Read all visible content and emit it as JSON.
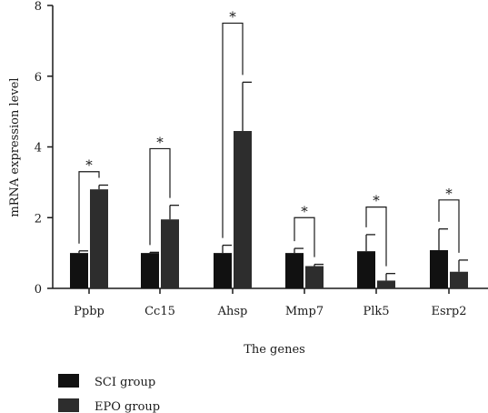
{
  "chart_data": {
    "type": "bar",
    "title": "",
    "xlabel": "The genes",
    "ylabel": "mRNA expression level",
    "ylim": [
      0,
      8
    ],
    "yticks": [
      0,
      2,
      4,
      6,
      8
    ],
    "categories": [
      "Ppbp",
      "Cc15",
      "Ahsp",
      "Mmp7",
      "Plk5",
      "Esrp2"
    ],
    "series": [
      {
        "name": "SCI group",
        "color": "#111111",
        "values": [
          1.0,
          1.0,
          1.0,
          1.0,
          1.05,
          1.08
        ],
        "errors": [
          0.06,
          0.02,
          0.22,
          0.13,
          0.47,
          0.6
        ]
      },
      {
        "name": "EPO group",
        "color": "#2d2d2d",
        "values": [
          2.8,
          1.95,
          4.45,
          0.63,
          0.22,
          0.47
        ],
        "errors": [
          0.12,
          0.4,
          1.38,
          0.05,
          0.2,
          0.33
        ]
      }
    ],
    "significance": [
      {
        "category": "Ppbp",
        "label": "*",
        "level": 3.3
      },
      {
        "category": "Cc15",
        "label": "*",
        "level": 3.95
      },
      {
        "category": "Ahsp",
        "label": "*",
        "level": 7.5
      },
      {
        "category": "Mmp7",
        "label": "*",
        "level": 2.0
      },
      {
        "category": "Plk5",
        "label": "*",
        "level": 2.3
      },
      {
        "category": "Esrp2",
        "label": "*",
        "level": 2.5
      }
    ],
    "legend_position": "bottom-left",
    "grid": false
  }
}
